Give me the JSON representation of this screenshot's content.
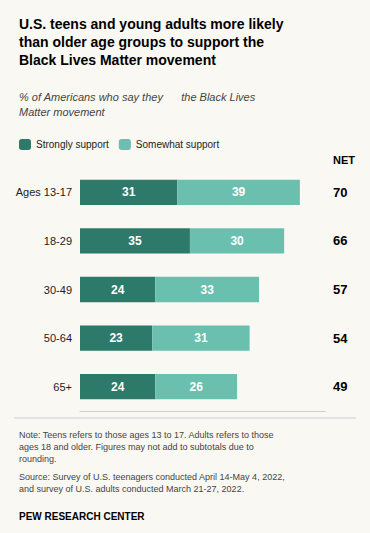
{
  "chart_data": {
    "type": "bar",
    "orientation": "horizontal",
    "stacked": true,
    "title": "U.S. teens and young adults more likely\nthan older age groups to support the\nBlack Lives Matter movement",
    "subtitle": "% of Americans who say they      the Black Lives\nMatter movement",
    "categories": [
      "Ages 13-17",
      "18-29",
      "30-49",
      "50-64",
      "65+"
    ],
    "series": [
      {
        "name": "Strongly support",
        "color": "#2d7a6b",
        "values": [
          31,
          35,
          24,
          23,
          24
        ]
      },
      {
        "name": "Somewhat support",
        "color": "#6abfaf",
        "values": [
          39,
          30,
          33,
          31,
          26
        ]
      }
    ],
    "net_label": "NET",
    "net": [
      70,
      66,
      57,
      54,
      49
    ],
    "xlim": [
      0,
      78
    ],
    "data_labels": true,
    "tick_labels": "y",
    "grid": false,
    "legend": "upper left",
    "note": "Note: Teens refers to those ages 13 to 17. Adults refers to those\nages 18 and older. Figures may not add to subtotals due to\nrounding.",
    "source": "Source: Survey of U.S. teenagers conducted April 14-May 4, 2022,\nand survey of U.S. adults conducted March 21-27, 2022.",
    "branding": "PEW RESEARCH CENTER",
    "background_color": "#faf8f3"
  }
}
